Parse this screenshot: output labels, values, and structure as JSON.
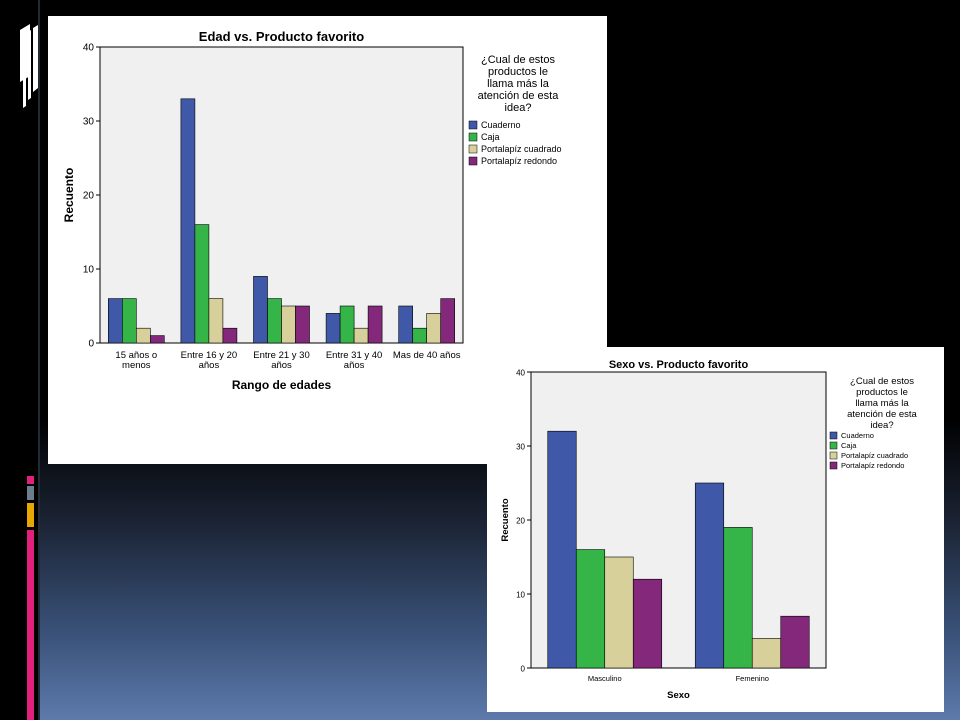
{
  "theme": {
    "colors": {
      "cuaderno": "#3f59a8",
      "caja": "#35b447",
      "portalapiz_cuadrado": "#d7d09a",
      "portalapiz_redondo": "#83287b",
      "plot_bg": "#f0f0f0",
      "accent_pink": "#e0207a",
      "accent_gray": "#6e7d8e",
      "accent_gold": "#e6a800"
    }
  },
  "chart_data": [
    {
      "type": "bar",
      "title": "Edad vs. Producto favorito",
      "xlabel": "Rango de edades",
      "ylabel": "Recuento",
      "ylim": [
        0,
        40
      ],
      "yticks": [
        0,
        10,
        20,
        30,
        40
      ],
      "categories": [
        [
          "15 años o",
          "menos"
        ],
        [
          "Entre 16 y 20",
          "años"
        ],
        [
          "Entre 21 y 30",
          "años"
        ],
        [
          "Entre 31 y 40",
          "años"
        ],
        [
          "Mas de 40 años"
        ]
      ],
      "legend_title": [
        "¿Cual de estos",
        "productos le",
        "llama más la",
        "atención de esta",
        "idea?"
      ],
      "legend_position": "top-right",
      "series": [
        {
          "name": "Cuaderno",
          "color": "#3f59a8",
          "values": [
            6,
            33,
            9,
            4,
            5
          ]
        },
        {
          "name": "Caja",
          "color": "#35b447",
          "values": [
            6,
            16,
            6,
            5,
            2
          ]
        },
        {
          "name": "Portalapíz cuadrado",
          "color": "#d7d09a",
          "values": [
            2,
            6,
            5,
            2,
            4
          ]
        },
        {
          "name": "Portalapíz redondo",
          "color": "#83287b",
          "values": [
            1,
            2,
            5,
            5,
            6
          ]
        }
      ]
    },
    {
      "type": "bar",
      "title": "Sexo vs. Producto favorito",
      "xlabel": "Sexo",
      "ylabel": "Recuento",
      "ylim": [
        0,
        40
      ],
      "yticks": [
        0,
        10,
        20,
        30,
        40
      ],
      "categories": [
        [
          "Masculino"
        ],
        [
          "Femenino"
        ]
      ],
      "legend_title": [
        "¿Cual de estos",
        "productos le",
        "llama más la",
        "atención de esta",
        "idea?"
      ],
      "legend_position": "top-right",
      "series": [
        {
          "name": "Cuaderno",
          "color": "#3f59a8",
          "values": [
            32,
            25
          ]
        },
        {
          "name": "Caja",
          "color": "#35b447",
          "values": [
            16,
            19
          ]
        },
        {
          "name": "Portalapíz cuadrado",
          "color": "#d7d09a",
          "values": [
            15,
            4
          ]
        },
        {
          "name": "Portalapíz redondo",
          "color": "#83287b",
          "values": [
            12,
            7
          ]
        }
      ]
    }
  ]
}
